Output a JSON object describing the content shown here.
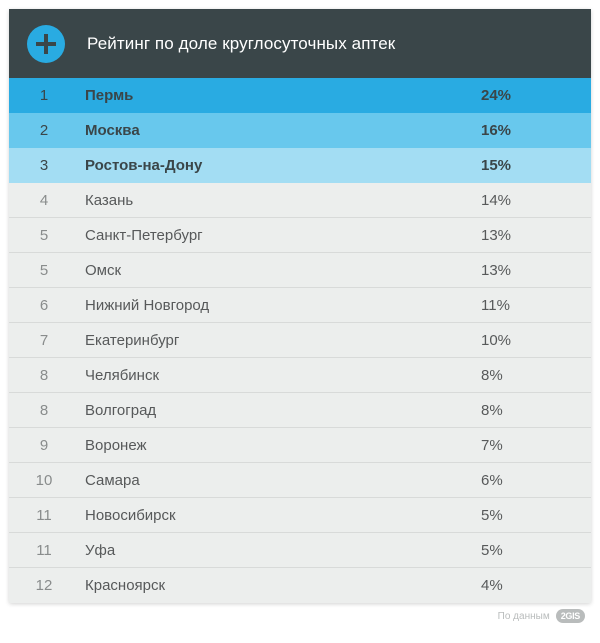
{
  "layout": {
    "card_bg": "#eceeed",
    "divider": "#d8dad9",
    "text_fg": "#57595a",
    "rank_fg": "#898c8c"
  },
  "header": {
    "title": "Рейтинг по доле круглосуточных аптек",
    "bg": "#3a4649",
    "fg": "#ffffff",
    "icon_bg": "#29abe2",
    "icon_fg": "#3a4649"
  },
  "top_rows": {
    "fg": "#3a4649",
    "bg": [
      "#29abe2",
      "#68c8ed",
      "#a3ddf3"
    ]
  },
  "rows": [
    {
      "rank": "1",
      "city": "Пермь",
      "value": "24%",
      "top": true
    },
    {
      "rank": "2",
      "city": "Москва",
      "value": "16%",
      "top": true
    },
    {
      "rank": "3",
      "city": "Ростов-на-Дону",
      "value": "15%",
      "top": true
    },
    {
      "rank": "4",
      "city": "Казань",
      "value": "14%",
      "top": false
    },
    {
      "rank": "5",
      "city": "Санкт-Петербург",
      "value": "13%",
      "top": false
    },
    {
      "rank": "5",
      "city": "Омск",
      "value": "13%",
      "top": false
    },
    {
      "rank": "6",
      "city": "Нижний Новгород",
      "value": "11%",
      "top": false
    },
    {
      "rank": "7",
      "city": "Екатеринбург",
      "value": "10%",
      "top": false
    },
    {
      "rank": "8",
      "city": "Челябинск",
      "value": "8%",
      "top": false
    },
    {
      "rank": "8",
      "city": "Волгоград",
      "value": "8%",
      "top": false
    },
    {
      "rank": "9",
      "city": "Воронеж",
      "value": "7%",
      "top": false
    },
    {
      "rank": "10",
      "city": "Самара",
      "value": "6%",
      "top": false
    },
    {
      "rank": "11",
      "city": "Новосибирск",
      "value": "5%",
      "top": false
    },
    {
      "rank": "11",
      "city": "Уфа",
      "value": "5%",
      "top": false
    },
    {
      "rank": "12",
      "city": "Красноярск",
      "value": "4%",
      "top": false
    }
  ],
  "footer": {
    "label": "По данным",
    "brand": "2GIS"
  }
}
